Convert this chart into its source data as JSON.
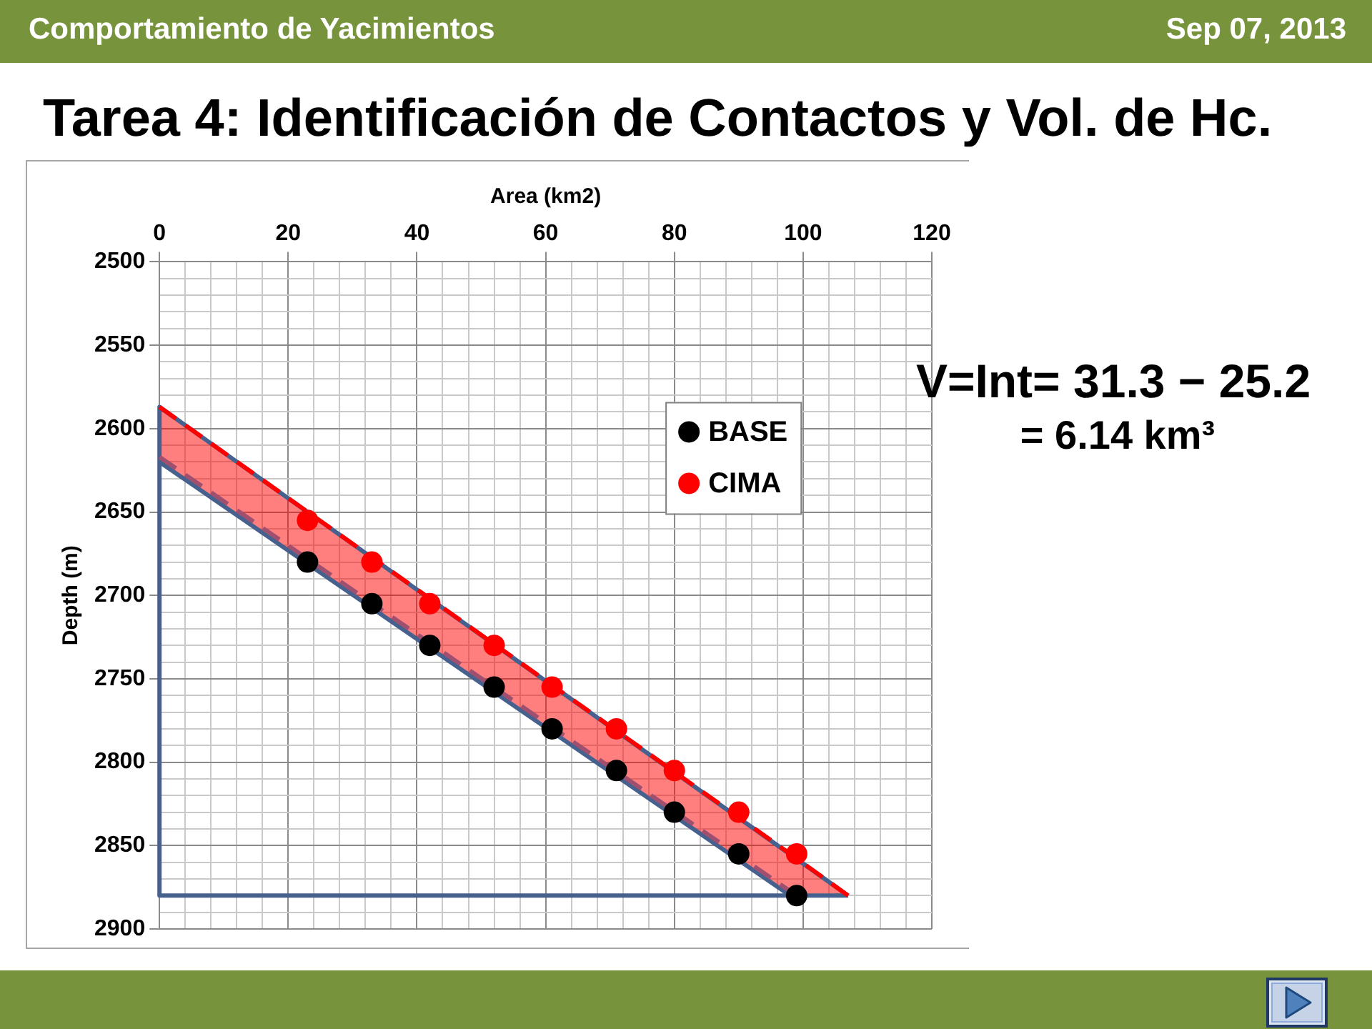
{
  "chart_data": {
    "type": "scatter",
    "title": "Tarea 4: Identificación de Contactos y Vol. de Hc.",
    "xlabel": "Area (km2)",
    "ylabel": "Depth (m)",
    "annotations": [
      "Comportamiento de Yacimientos",
      "Sep 07, 2013",
      "V=Int= 31.3 − 25.2",
      "= 6.14 km³"
    ],
    "xlim": [
      0,
      120
    ],
    "xticks": [
      0,
      {
        "value": 4,
        "label": null
      },
      {
        "value": 8,
        "label": null
      },
      {
        "value": 12,
        "label": null
      },
      {
        "value": 16,
        "label": null
      },
      20,
      {
        "value": 24,
        "label": null
      },
      {
        "value": 28,
        "label": null
      },
      {
        "value": 32,
        "label": null
      },
      {
        "value": 36,
        "label": null
      },
      40,
      {
        "value": 44,
        "label": null
      },
      {
        "value": 48,
        "label": null
      },
      {
        "value": 52,
        "label": null
      },
      {
        "value": 56,
        "label": null
      },
      60,
      {
        "value": 64,
        "label": null
      },
      {
        "value": 68,
        "label": null
      },
      {
        "value": 72,
        "label": null
      },
      {
        "value": 76,
        "label": null
      },
      80,
      {
        "value": 84,
        "label": null
      },
      {
        "value": 88,
        "label": null
      },
      {
        "value": 92,
        "label": null
      },
      {
        "value": 96,
        "label": null
      },
      100,
      {
        "value": 104,
        "label": null
      },
      {
        "value": 108,
        "label": null
      },
      {
        "value": 112,
        "label": null
      },
      {
        "value": 116,
        "label": null
      },
      120
    ],
    "ylim": [
      2900,
      2500
    ],
    "yticks": [
      2500,
      {
        "value": 2510,
        "label": null
      },
      {
        "value": 2520,
        "label": null
      },
      {
        "value": 2530,
        "label": null
      },
      {
        "value": 2540,
        "label": null
      },
      2550,
      {
        "value": 2560,
        "label": null
      },
      {
        "value": 2570,
        "label": null
      },
      {
        "value": 2580,
        "label": null
      },
      {
        "value": 2590,
        "label": null
      },
      2600,
      {
        "value": 2610,
        "label": null
      },
      {
        "value": 2620,
        "label": null
      },
      {
        "value": 2630,
        "label": null
      },
      {
        "value": 2640,
        "label": null
      },
      2650,
      {
        "value": 2660,
        "label": null
      },
      {
        "value": 2670,
        "label": null
      },
      {
        "value": 2680,
        "label": null
      },
      {
        "value": 2690,
        "label": null
      },
      2700,
      {
        "value": 2710,
        "label": null
      },
      {
        "value": 2720,
        "label": null
      },
      {
        "value": 2730,
        "label": null
      },
      {
        "value": 2740,
        "label": null
      },
      2750,
      {
        "value": 2760,
        "label": null
      },
      {
        "value": 2770,
        "label": null
      },
      {
        "value": 2780,
        "label": null
      },
      {
        "value": 2790,
        "label": null
      },
      2800,
      {
        "value": 2810,
        "label": null
      },
      {
        "value": 2820,
        "label": null
      },
      {
        "value": 2830,
        "label": null
      },
      {
        "value": 2840,
        "label": null
      },
      2850,
      {
        "value": 2860,
        "label": null
      },
      {
        "value": 2870,
        "label": null
      },
      {
        "value": 2880,
        "label": null
      },
      {
        "value": 2890,
        "label": null
      },
      2900
    ],
    "grid": true,
    "legend": "top right",
    "marker": "circle",
    "series": [
      {
        "name": "BASE",
        "color": "#000000",
        "x": [
          23,
          33,
          42,
          52,
          61,
          71,
          80,
          90,
          99
        ],
        "values": [
          2680,
          2705,
          2730,
          2755,
          2780,
          2805,
          2830,
          2855,
          2880
        ]
      },
      {
        "name": "CIMA",
        "color": "#ff0000",
        "x": [
          23,
          33,
          42,
          52,
          61,
          71,
          80,
          90,
          99
        ],
        "values": [
          2655,
          2680,
          2705,
          2730,
          2755,
          2780,
          2805,
          2830,
          2855
        ]
      },
      {
        "type": "line",
        "color": "#ff0000",
        "line_style": "dashed",
        "marker": "none",
        "x": [
          0,
          98,
          107
        ],
        "values": [
          2587,
          2855,
          2880
        ],
        "lower": [
          2587,
          2855,
          2880
        ],
        "upper": [
          2620,
          2880,
          2880
        ]
      },
      {
        "type": "line",
        "color": "#a0506e",
        "line_style": "dashed",
        "marker": "none",
        "x": [
          0,
          99
        ],
        "values": [
          2617,
          2880
        ]
      },
      {
        "type": "line",
        "color": "#46618e",
        "line_style": "solid",
        "marker": "none",
        "x": [
          0,
          107
        ],
        "values": [
          2587,
          2880
        ]
      },
      {
        "type": "line",
        "color": "#46618e",
        "line_style": "solid",
        "marker": "none",
        "x": [
          0,
          98
        ],
        "values": [
          2620,
          2880
        ]
      },
      {
        "type": "line",
        "color": "#46618e",
        "line_style": "solid",
        "marker": "none",
        "x": [
          0,
          0,
          107
        ],
        "values": [
          2587,
          2880,
          2880
        ]
      }
    ]
  }
}
